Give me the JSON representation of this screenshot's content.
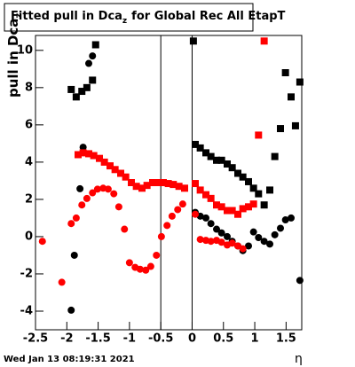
{
  "chart_data": {
    "type": "scatter",
    "title": [
      "Fitted pull in Dca",
      "z",
      "for Global Rec All EtapT"
    ],
    "y_label": [
      "pull in Dca",
      "z"
    ],
    "x_label": "η",
    "footer": "Wed Jan 13 08:19:31 2021",
    "xlim": [
      -2.5,
      1.75
    ],
    "ylim": [
      -5,
      10.8
    ],
    "xticks": [
      -2.5,
      -2,
      -1.5,
      -1,
      -0.5,
      0,
      0.5,
      1,
      1.5
    ],
    "yticks": [
      -4,
      -2,
      0,
      2,
      4,
      6,
      8,
      10
    ],
    "vlines": [
      -0.5,
      0
    ],
    "series": [
      {
        "marker": "square",
        "color": "#000000",
        "x": [
          -1.93,
          -1.85,
          -1.76,
          -1.68,
          -1.59,
          -1.54,
          0.02,
          0.05,
          0.13,
          0.22,
          0.3,
          0.39,
          0.47,
          0.56,
          0.64,
          0.73,
          0.81,
          0.9,
          0.98,
          1.06,
          1.15,
          1.24,
          1.32,
          1.41,
          1.49,
          1.58,
          1.65,
          1.72
        ],
        "values": [
          7.9,
          7.5,
          7.8,
          8.0,
          8.4,
          10.3,
          10.5,
          4.95,
          4.76,
          4.5,
          4.3,
          4.1,
          4.1,
          3.9,
          3.7,
          3.4,
          3.2,
          2.95,
          2.6,
          2.3,
          1.7,
          2.5,
          4.3,
          5.8,
          8.8,
          7.5,
          5.95,
          8.3
        ]
      },
      {
        "marker": "circle",
        "color": "#000000",
        "x": [
          -1.93,
          -1.88,
          -1.79,
          -1.74,
          -1.65,
          -1.59,
          0.05,
          0.13,
          0.22,
          0.3,
          0.39,
          0.47,
          0.56,
          0.64,
          0.73,
          0.81,
          0.9,
          0.98,
          1.06,
          1.15,
          1.24,
          1.32,
          1.41,
          1.49,
          1.58,
          1.72
        ],
        "values": [
          -3.95,
          -1.0,
          2.57,
          4.8,
          9.3,
          9.7,
          1.3,
          1.1,
          1.0,
          0.7,
          0.4,
          0.2,
          0,
          -0.25,
          -0.5,
          -0.75,
          -0.5,
          0.25,
          -0.05,
          -0.25,
          -0.4,
          0.1,
          0.45,
          0.9,
          1.0,
          -2.35
        ]
      },
      {
        "marker": "square",
        "color": "#ff0000",
        "x": [
          -1.82,
          -1.74,
          -1.65,
          -1.57,
          -1.48,
          -1.4,
          -1.31,
          -1.23,
          -1.14,
          -1.06,
          -0.97,
          -0.89,
          -0.8,
          -0.72,
          -0.63,
          -0.55,
          -0.46,
          -0.38,
          -0.3,
          -0.21,
          -0.12,
          0.05,
          0.13,
          0.22,
          0.3,
          0.39,
          0.47,
          0.56,
          0.64,
          0.73,
          0.81,
          0.9,
          0.98,
          1.06,
          1.15
        ],
        "values": [
          4.4,
          4.5,
          4.45,
          4.35,
          4.2,
          4.0,
          3.8,
          3.6,
          3.4,
          3.2,
          2.9,
          2.7,
          2.6,
          2.75,
          2.9,
          2.9,
          2.9,
          2.85,
          2.8,
          2.7,
          2.6,
          2.85,
          2.5,
          2.25,
          2.05,
          1.7,
          1.6,
          1.4,
          1.4,
          1.2,
          1.5,
          1.6,
          1.75,
          5.45,
          10.5
        ]
      },
      {
        "marker": "circle",
        "color": "#ff0000",
        "x": [
          -2.39,
          -2.08,
          -1.93,
          -1.85,
          -1.76,
          -1.68,
          -1.59,
          -1.51,
          -1.42,
          -1.34,
          -1.25,
          -1.17,
          -1.08,
          -1.0,
          -0.91,
          -0.83,
          -0.74,
          -0.66,
          -0.57,
          -0.49,
          -0.4,
          -0.32,
          -0.23,
          -0.15,
          0.05,
          0.13,
          0.22,
          0.3,
          0.39,
          0.47,
          0.56,
          0.64,
          0.73,
          0.81
        ],
        "values": [
          -0.25,
          -2.45,
          0.7,
          1.0,
          1.7,
          2.05,
          2.35,
          2.55,
          2.6,
          2.55,
          2.3,
          1.6,
          0.4,
          -1.4,
          -1.65,
          -1.75,
          -1.8,
          -1.6,
          -1.0,
          0.0,
          0.6,
          1.1,
          1.45,
          1.75,
          1.2,
          -0.15,
          -0.2,
          -0.25,
          -0.2,
          -0.3,
          -0.45,
          -0.35,
          -0.5,
          -0.65
        ]
      }
    ]
  }
}
